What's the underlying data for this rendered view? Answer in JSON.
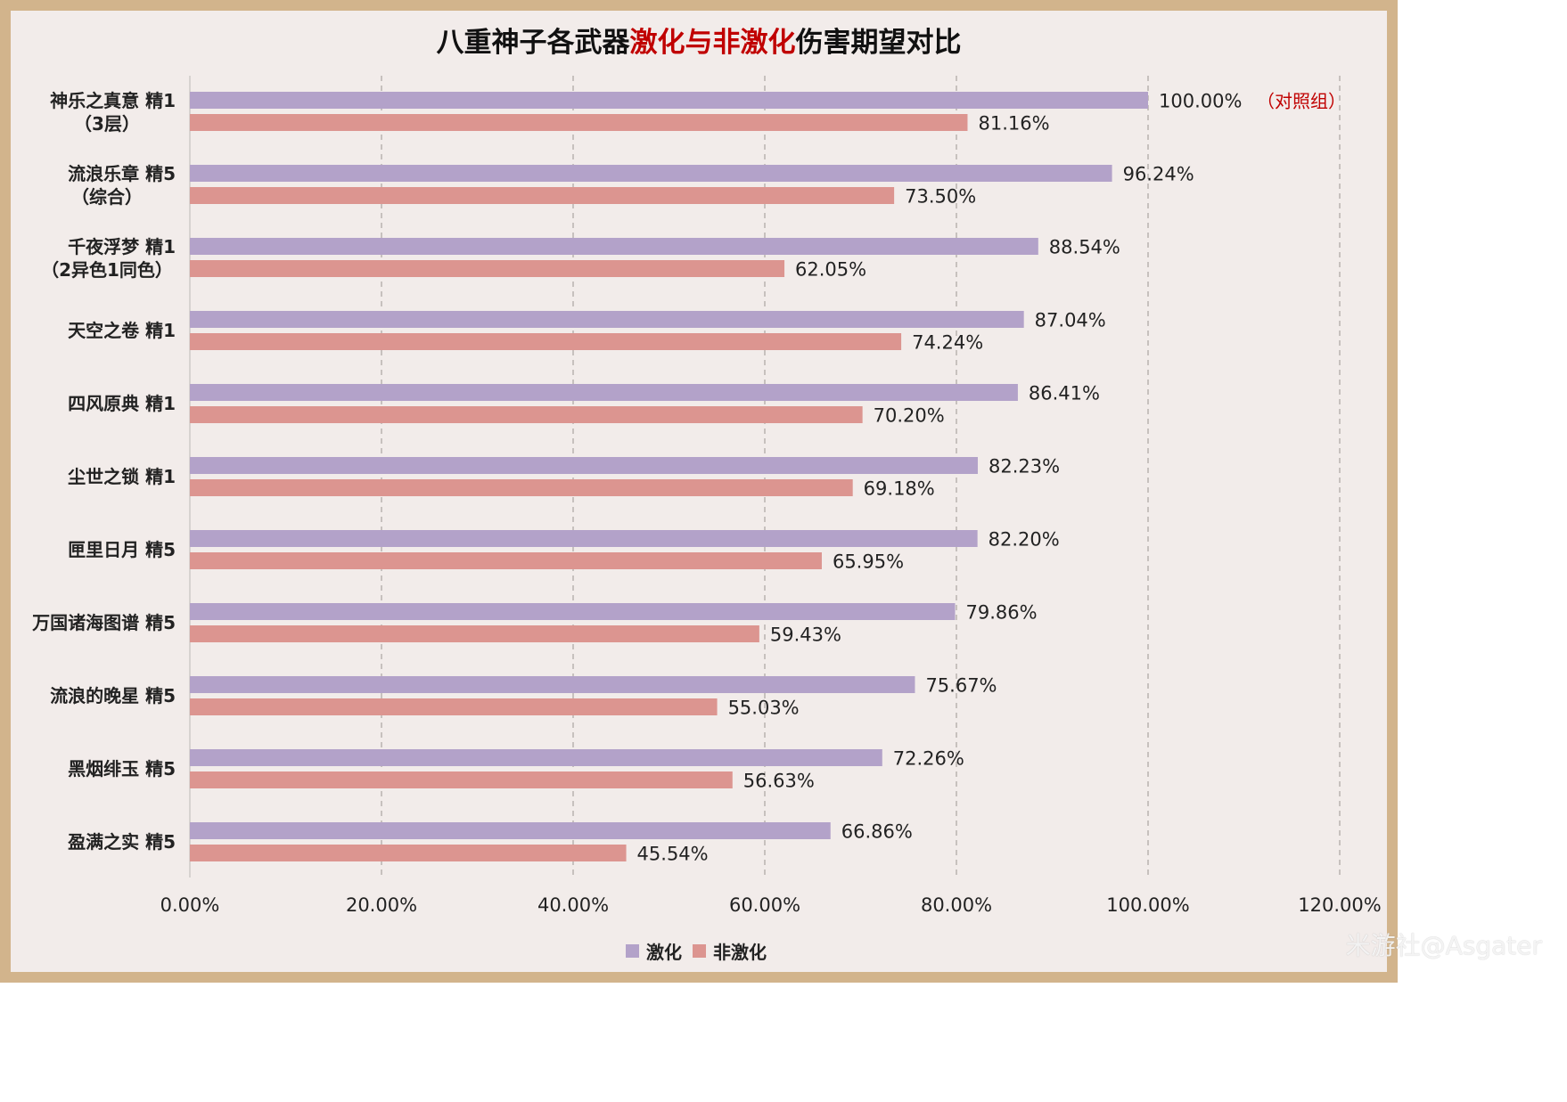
{
  "title": {
    "part1": "八重神子各武器",
    "part2": "激化与非激化",
    "part3": "伤害期望对比"
  },
  "colors": {
    "series1": "#b3a2c9",
    "series2": "#dc9590",
    "grid": "#b0aaa6",
    "note": "#c00000",
    "highlight": "#c00000"
  },
  "chart_data": {
    "type": "bar",
    "orientation": "horizontal",
    "categories": [
      [
        "神乐之真意 精1",
        "（3层）"
      ],
      [
        "流浪乐章 精5",
        "（综合）"
      ],
      [
        "千夜浮梦 精1",
        "（2异色1同色）"
      ],
      [
        "天空之卷 精1"
      ],
      [
        "四风原典 精1"
      ],
      [
        "尘世之锁 精1"
      ],
      [
        "匣里日月 精5"
      ],
      [
        "万国诸海图谱 精5"
      ],
      [
        "流浪的晚星 精5"
      ],
      [
        "黑烟绯玉 精5"
      ],
      [
        "盈满之实 精5"
      ]
    ],
    "series": [
      {
        "name": "激化",
        "values": [
          100.0,
          96.24,
          88.54,
          87.04,
          86.41,
          82.23,
          82.2,
          79.86,
          75.67,
          72.26,
          66.86
        ],
        "labels": [
          "100.00%",
          "96.24%",
          "88.54%",
          "87.04%",
          "86.41%",
          "82.23%",
          "82.20%",
          "79.86%",
          "75.67%",
          "72.26%",
          "66.86%"
        ]
      },
      {
        "name": "非激化",
        "values": [
          81.16,
          73.5,
          62.05,
          74.24,
          70.2,
          69.18,
          65.95,
          59.43,
          55.03,
          56.63,
          45.54
        ],
        "labels": [
          "81.16%",
          "73.50%",
          "62.05%",
          "74.24%",
          "70.20%",
          "69.18%",
          "65.95%",
          "59.43%",
          "55.03%",
          "56.63%",
          "45.54%"
        ]
      }
    ],
    "xlim": [
      0,
      120
    ],
    "xticks": [
      "0.00%",
      "20.00%",
      "40.00%",
      "60.00%",
      "80.00%",
      "100.00%",
      "120.00%"
    ],
    "annotation": "（对照组）",
    "legend_position": "bottom",
    "grid": "vertical dashed"
  },
  "watermark": "米游社@Asgater"
}
